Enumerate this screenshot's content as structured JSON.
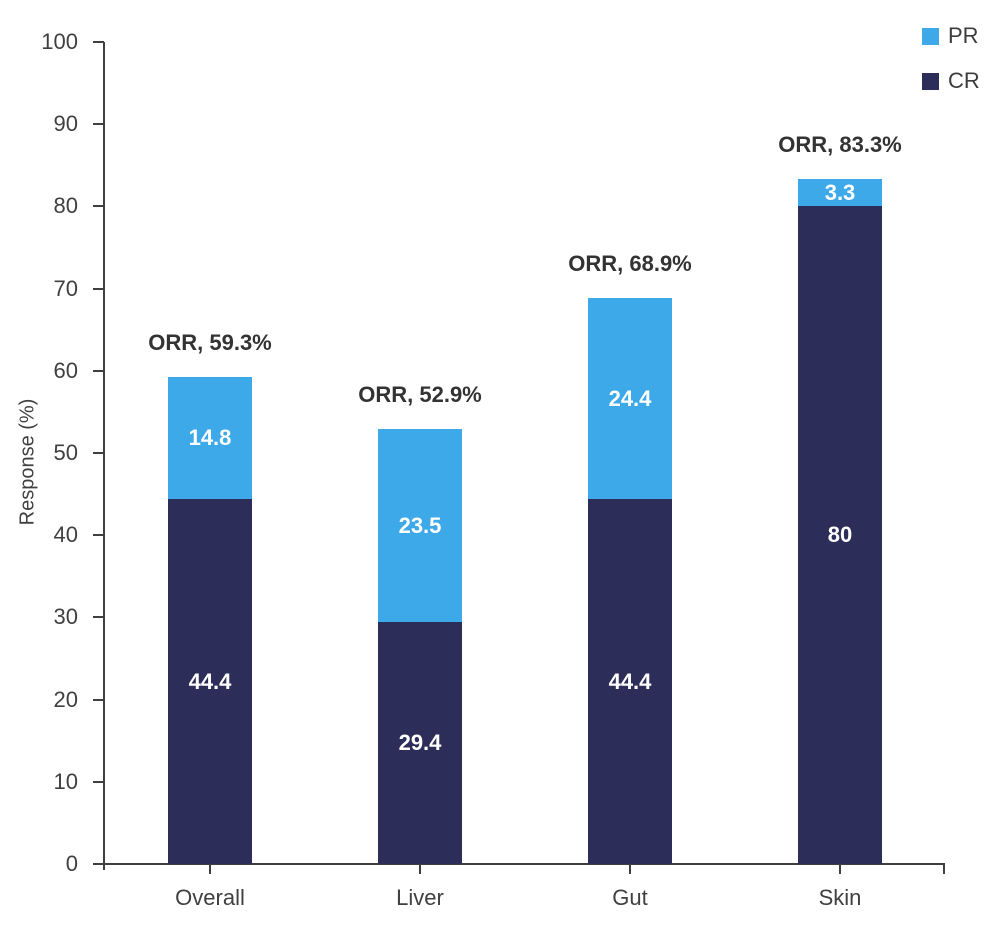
{
  "chart_data": {
    "type": "bar",
    "stacked": true,
    "title": "",
    "xlabel": "",
    "ylabel": "Response (%)",
    "ylim": [
      0,
      100
    ],
    "ytick_step": 10,
    "grid": false,
    "legend_position": "top-right",
    "categories": [
      "Overall",
      "Liver",
      "Gut",
      "Skin"
    ],
    "series": [
      {
        "name": "CR",
        "color": "#2C2D58",
        "values": [
          44.4,
          29.4,
          44.4,
          80
        ]
      },
      {
        "name": "PR",
        "color": "#3EA9E9",
        "values": [
          14.8,
          23.5,
          24.4,
          3.3
        ]
      }
    ],
    "bar_labels": {
      "CR": [
        "44.4",
        "29.4",
        "44.4",
        "80"
      ],
      "PR": [
        "14.8",
        "23.5",
        "24.4",
        "3.3"
      ]
    },
    "orr_labels": [
      "ORR, 59.3%",
      "ORR, 52.9%",
      "ORR, 68.9%",
      "ORR, 83.3%"
    ],
    "legend": [
      {
        "label": "PR",
        "color": "#3EA9E9"
      },
      {
        "label": "CR",
        "color": "#2C2D58"
      }
    ]
  }
}
